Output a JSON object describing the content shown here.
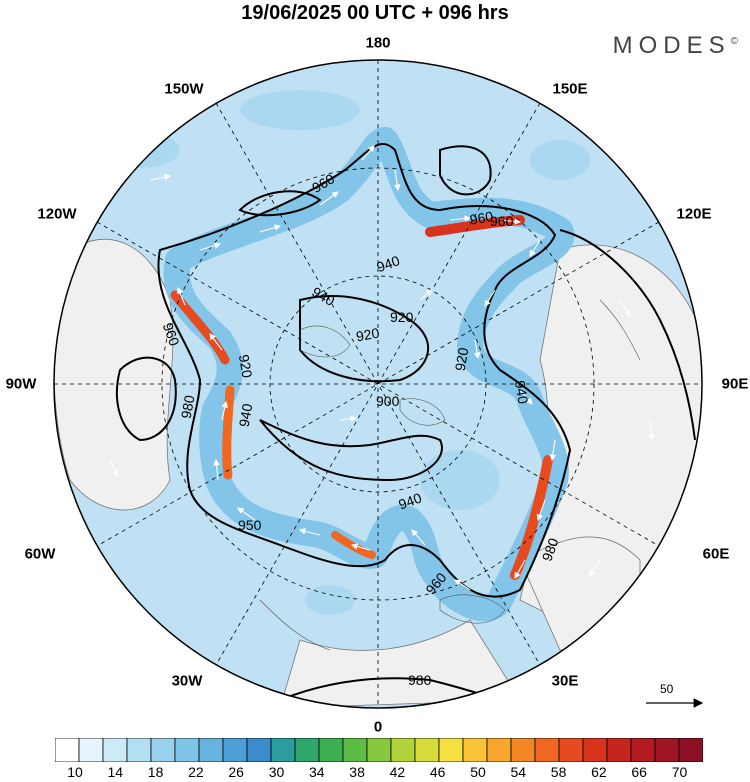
{
  "title": "19/06/2025  00 UTC  + 096 hrs",
  "brand": "MODES",
  "brand_mark": "©",
  "longitude_labels": {
    "lon_180": "180",
    "lon_150w": "150W",
    "lon_150e": "150E",
    "lon_120w": "120W",
    "lon_120e": "120E",
    "lon_90w": "90W",
    "lon_90e": "90E",
    "lon_60w": "60W",
    "lon_60e": "60E",
    "lon_30w": "30W",
    "lon_30e": "30E",
    "lon_0": "0"
  },
  "contour_labels": [
    "960",
    "960",
    "940",
    "940",
    "920",
    "960",
    "920",
    "900",
    "920",
    "940",
    "940",
    "980",
    "950",
    "940",
    "960",
    "920",
    "980",
    "960",
    "980"
  ],
  "vector_scale": {
    "value": "50"
  },
  "colorbar": {
    "tick_labels": [
      "10",
      "14",
      "18",
      "22",
      "26",
      "30",
      "34",
      "38",
      "42",
      "46",
      "50",
      "54",
      "58",
      "62",
      "66",
      "70"
    ],
    "colors": [
      "#ffffff",
      "#e6f4fb",
      "#cdeaf7",
      "#b3dff3",
      "#99d2ee",
      "#80c4e8",
      "#66b3e0",
      "#4d9fd6",
      "#3a8ccc",
      "#2a9e9e",
      "#2fa66b",
      "#3cb050",
      "#5cbd44",
      "#88c83e",
      "#b2d23c",
      "#d8dc3a",
      "#f4e040",
      "#f8c435",
      "#f7a52c",
      "#f48624",
      "#ef6720",
      "#e64a1e",
      "#d8331d",
      "#c7241e",
      "#b41b20",
      "#a01522",
      "#8c1024"
    ]
  }
}
